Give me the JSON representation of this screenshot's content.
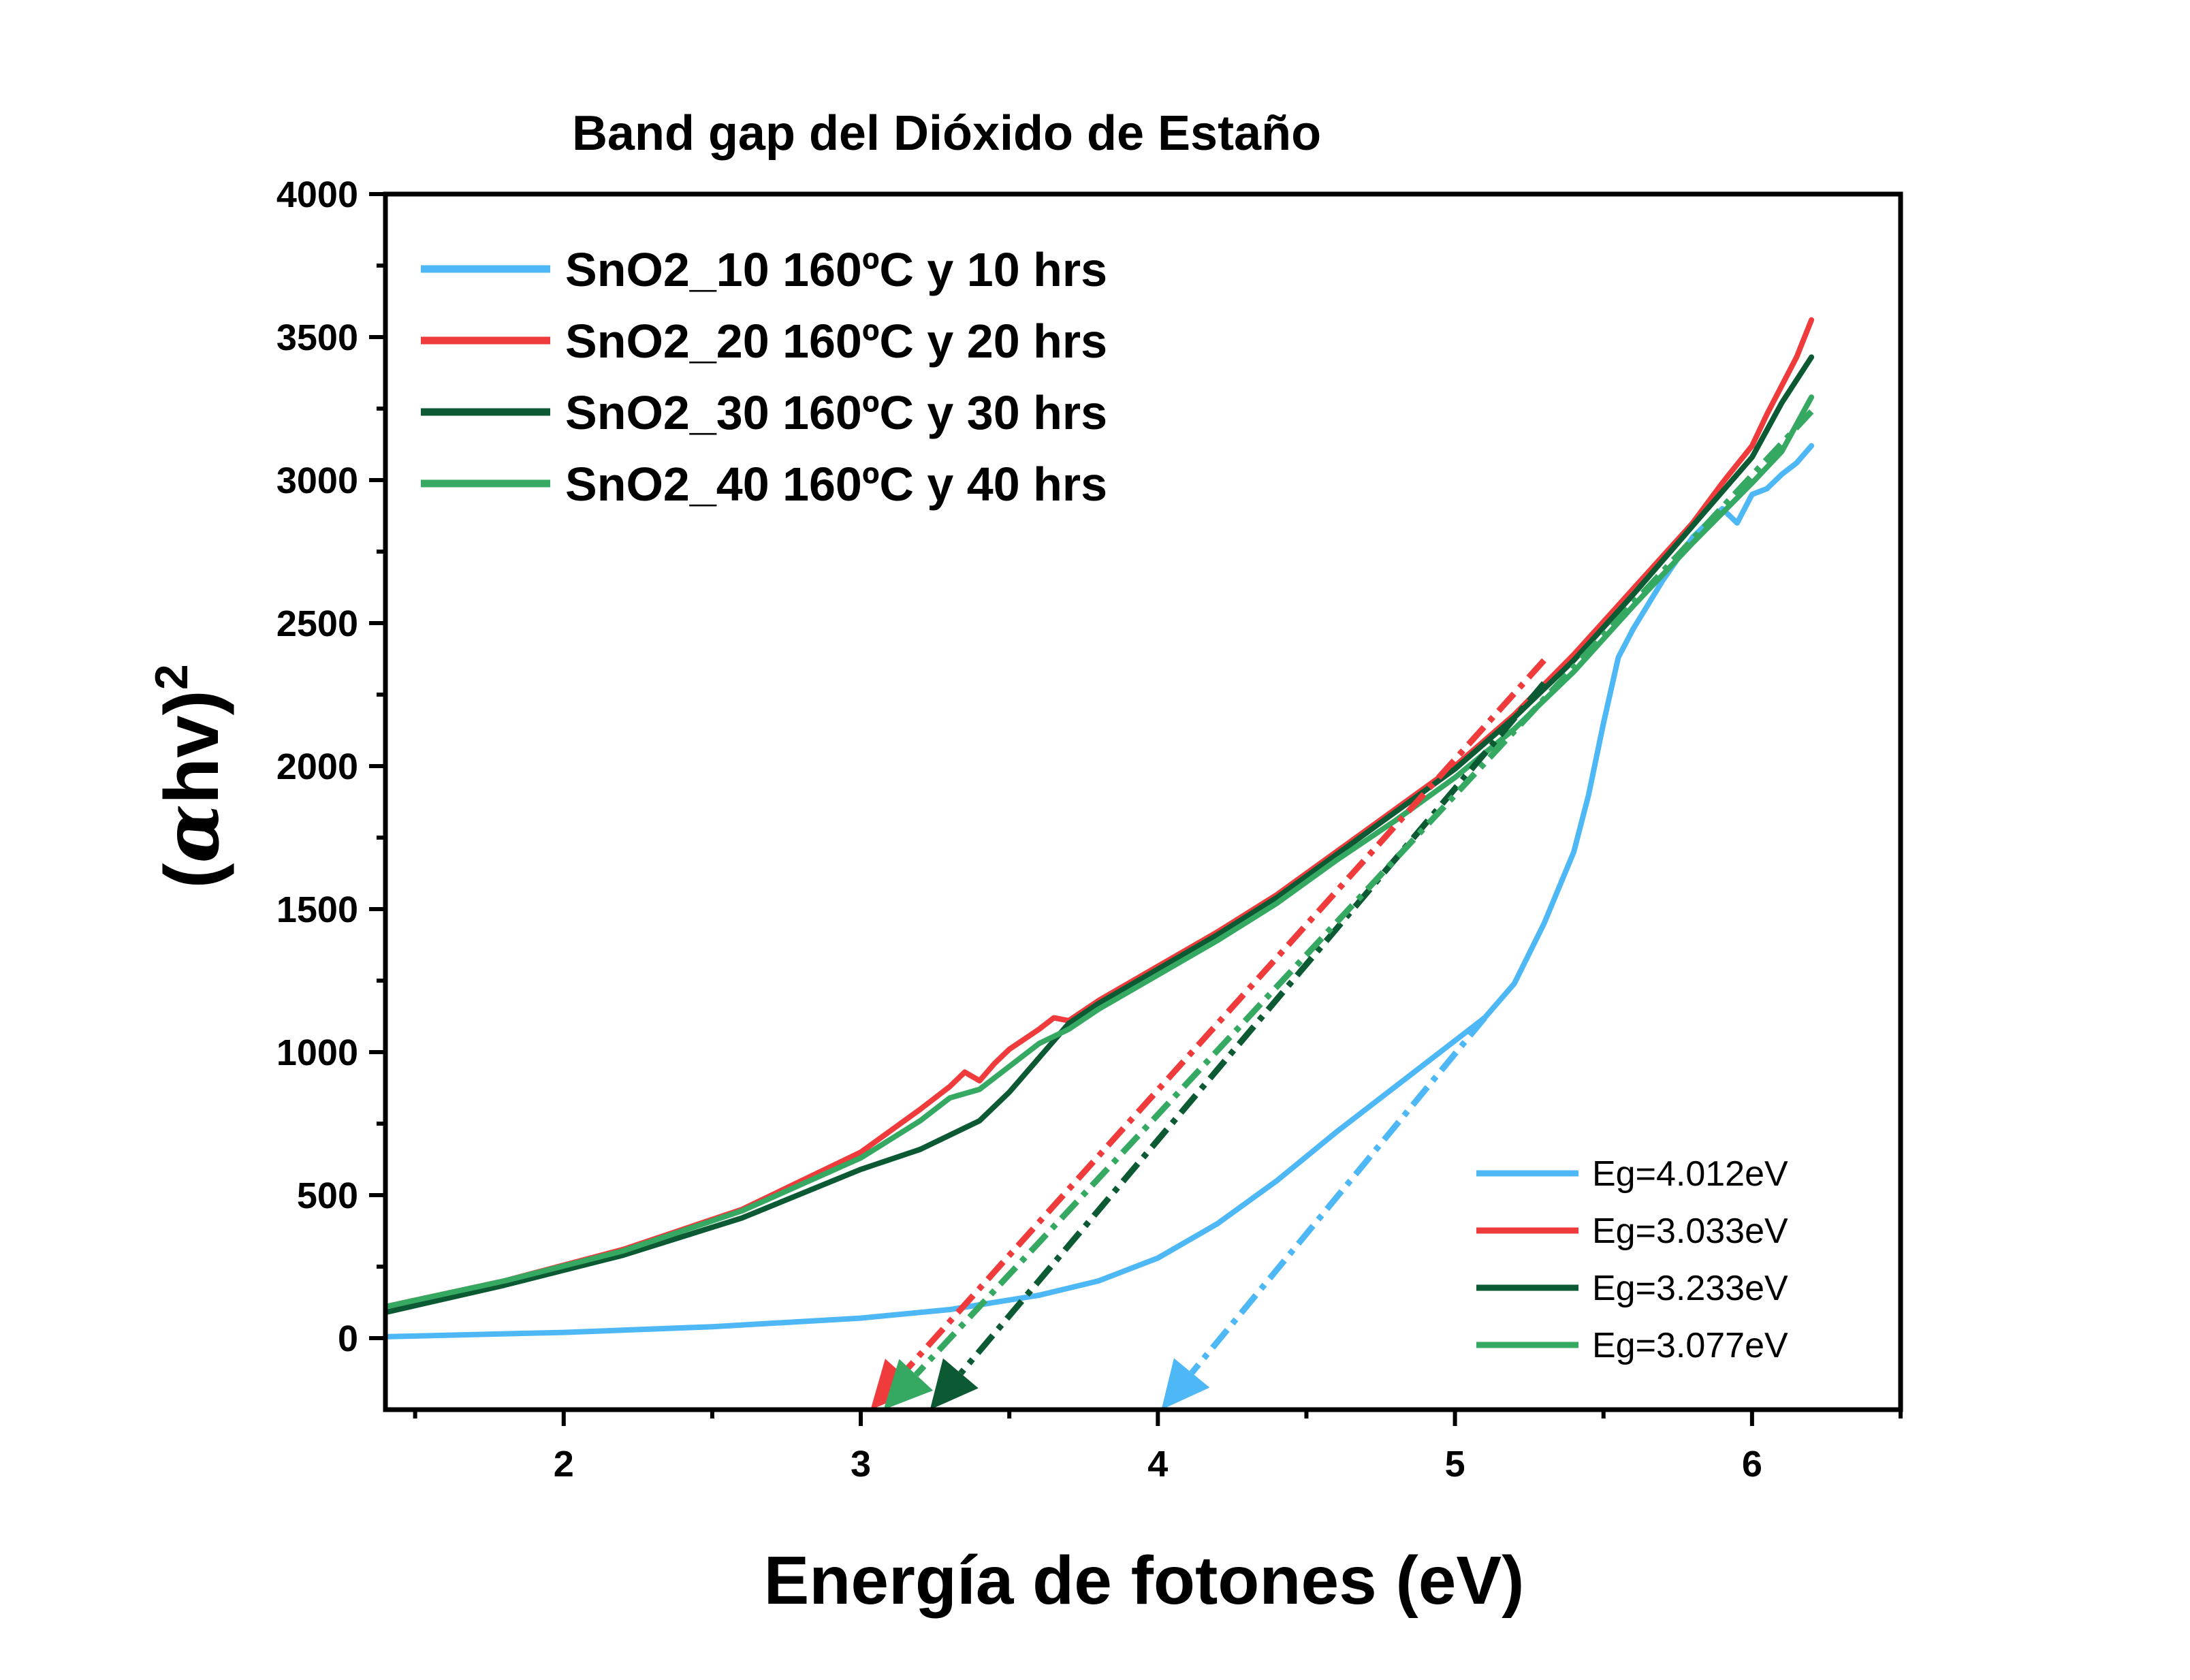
{
  "chart_data": {
    "type": "line",
    "title": "Band gap del Dióxido de Estaño",
    "xlabel": "Energía de fotones (eV)",
    "ylabel": "(αhv)²",
    "ylabel_parts": {
      "open": "(",
      "alpha": "α",
      "hv": "hv",
      "close": ")",
      "sup": "2"
    },
    "xlim": [
      1.4,
      6.5
    ],
    "ylim": [
      -250,
      4000
    ],
    "xticks": [
      2,
      3,
      4,
      5,
      6
    ],
    "yticks": [
      0,
      500,
      1000,
      1500,
      2000,
      2500,
      3000,
      3500,
      4000
    ],
    "grid": false,
    "colors": {
      "SnO2_10": "#4db8f5",
      "SnO2_20": "#ef3b3b",
      "SnO2_30": "#0c5a34",
      "SnO2_40": "#35a862"
    },
    "series": [
      {
        "name": "SnO2_10 160ºC y 10 hrs",
        "color": "#4db8f5",
        "x": [
          1.4,
          2.0,
          2.5,
          3.0,
          3.3,
          3.6,
          3.8,
          4.0,
          4.2,
          4.4,
          4.6,
          4.8,
          5.0,
          5.1,
          5.2,
          5.3,
          5.4,
          5.45,
          5.5,
          5.55,
          5.6,
          5.7,
          5.8,
          5.9,
          5.95,
          6.0,
          6.05,
          6.1,
          6.15,
          6.2
        ],
        "y": [
          5,
          20,
          40,
          70,
          100,
          150,
          200,
          280,
          400,
          550,
          720,
          880,
          1040,
          1120,
          1240,
          1450,
          1700,
          1900,
          2150,
          2380,
          2480,
          2650,
          2800,
          2900,
          2850,
          2950,
          2970,
          3020,
          3060,
          3120
        ]
      },
      {
        "name": "SnO2_20 160ºC y 20 hrs",
        "color": "#ef3b3b",
        "x": [
          1.4,
          1.8,
          2.2,
          2.6,
          3.0,
          3.2,
          3.3,
          3.35,
          3.4,
          3.45,
          3.5,
          3.6,
          3.65,
          3.7,
          3.8,
          4.0,
          4.2,
          4.4,
          4.6,
          4.8,
          5.0,
          5.2,
          5.4,
          5.6,
          5.8,
          5.9,
          6.0,
          6.05,
          6.1,
          6.15,
          6.2
        ],
        "y": [
          110,
          200,
          310,
          450,
          650,
          800,
          880,
          930,
          900,
          960,
          1010,
          1080,
          1120,
          1110,
          1180,
          1300,
          1420,
          1550,
          1700,
          1850,
          2000,
          2180,
          2390,
          2620,
          2850,
          2990,
          3120,
          3230,
          3330,
          3430,
          3560
        ]
      },
      {
        "name": "SnO2_30 160ºC y 30 hrs",
        "color": "#0c5a34",
        "x": [
          1.4,
          1.8,
          2.2,
          2.6,
          3.0,
          3.2,
          3.4,
          3.5,
          3.6,
          3.7,
          3.8,
          4.0,
          4.2,
          4.4,
          4.6,
          4.8,
          5.0,
          5.2,
          5.4,
          5.6,
          5.8,
          6.0,
          6.1,
          6.2
        ],
        "y": [
          90,
          185,
          290,
          420,
          590,
          660,
          760,
          860,
          980,
          1100,
          1170,
          1290,
          1410,
          1540,
          1690,
          1840,
          1990,
          2170,
          2370,
          2600,
          2840,
          3080,
          3270,
          3430
        ]
      },
      {
        "name": "SnO2_40 160ºC y 40 hrs",
        "color": "#35a862",
        "x": [
          1.4,
          1.8,
          2.2,
          2.6,
          3.0,
          3.2,
          3.3,
          3.4,
          3.5,
          3.6,
          3.7,
          3.8,
          4.0,
          4.2,
          4.4,
          4.6,
          4.8,
          5.0,
          5.2,
          5.4,
          5.6,
          5.8,
          6.0,
          6.1,
          6.2
        ],
        "y": [
          110,
          200,
          305,
          445,
          630,
          760,
          840,
          870,
          950,
          1030,
          1080,
          1150,
          1270,
          1390,
          1520,
          1670,
          1810,
          1960,
          2130,
          2330,
          2560,
          2780,
          2990,
          3100,
          3290
        ]
      }
    ],
    "fit_lines": [
      {
        "label": "Eg=4.012eV",
        "color": "#4db8f5",
        "x": [
          4.012,
          5.1
        ],
        "y": [
          -250,
          1120
        ]
      },
      {
        "label": "Eg=3.033eV",
        "color": "#ef3b3b",
        "x": [
          3.033,
          5.3
        ],
        "y": [
          -250,
          2370
        ]
      },
      {
        "label": "Eg=3.233eV",
        "color": "#0c5a34",
        "x": [
          3.233,
          5.3
        ],
        "y": [
          -250,
          2290
        ]
      },
      {
        "label": "Eg=3.077eV",
        "color": "#35a862",
        "x": [
          3.077,
          6.2
        ],
        "y": [
          -250,
          3240
        ]
      }
    ],
    "legend_position": "top-left",
    "legend2_position": "bottom-right"
  }
}
